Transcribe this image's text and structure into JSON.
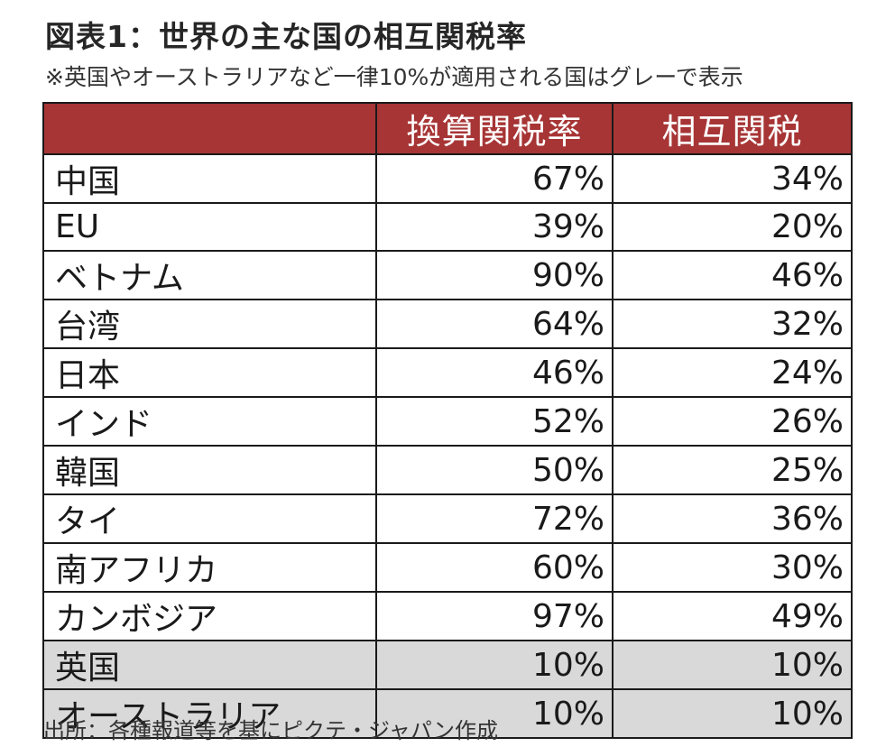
{
  "title": "図表1：世界の主な国の相互関税率",
  "note": "※英国やオーストラリアなど一律10%が適用される国はグレーで表示",
  "table": {
    "headers": [
      "",
      "換算関税率",
      "相互関税"
    ],
    "rows": [
      {
        "country": "中国",
        "converted_rate": "67%",
        "reciprocal_tariff": "34%",
        "gray": false
      },
      {
        "country": "EU",
        "converted_rate": "39%",
        "reciprocal_tariff": "20%",
        "gray": false
      },
      {
        "country": "ベトナム",
        "converted_rate": "90%",
        "reciprocal_tariff": "46%",
        "gray": false
      },
      {
        "country": "台湾",
        "converted_rate": "64%",
        "reciprocal_tariff": "32%",
        "gray": false
      },
      {
        "country": "日本",
        "converted_rate": "46%",
        "reciprocal_tariff": "24%",
        "gray": false
      },
      {
        "country": "インド",
        "converted_rate": "52%",
        "reciprocal_tariff": "26%",
        "gray": false
      },
      {
        "country": "韓国",
        "converted_rate": "50%",
        "reciprocal_tariff": "25%",
        "gray": false
      },
      {
        "country": "タイ",
        "converted_rate": "72%",
        "reciprocal_tariff": "36%",
        "gray": false
      },
      {
        "country": "南アフリカ",
        "converted_rate": "60%",
        "reciprocal_tariff": "30%",
        "gray": false
      },
      {
        "country": "カンボジア",
        "converted_rate": "97%",
        "reciprocal_tariff": "49%",
        "gray": false
      },
      {
        "country": "英国",
        "converted_rate": "10%",
        "reciprocal_tariff": "10%",
        "gray": true
      },
      {
        "country": "オーストラリア",
        "converted_rate": "10%",
        "reciprocal_tariff": "10%",
        "gray": true
      }
    ]
  },
  "source": "出所：各種報道等を基にピクテ・ジャパン作成",
  "colors": {
    "header_background": "#a73535",
    "header_text": "#ffffff",
    "gray_row": "#d9d9d9",
    "border": "#1a1a1a"
  }
}
